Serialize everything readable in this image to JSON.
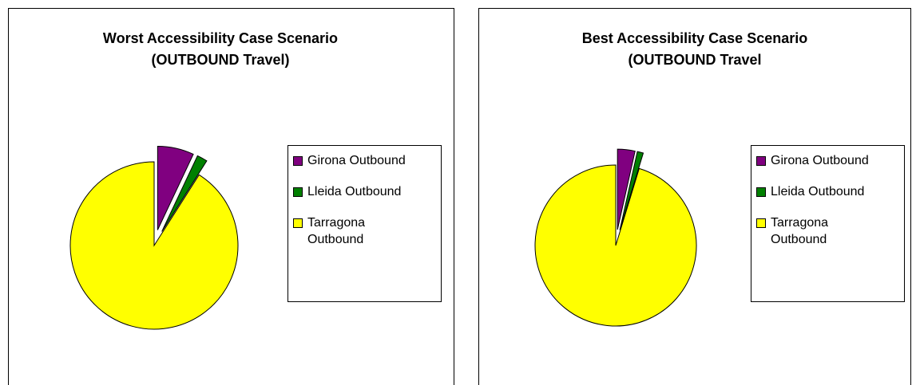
{
  "chart_data": [
    {
      "type": "pie",
      "title": [
        "Worst Accessibility Case Scenario",
        "(OUTBOUND Travel)"
      ],
      "categories": [
        "Girona Outbound",
        "Lleida Outbound",
        "Tarragona Outbound"
      ],
      "values": [
        7,
        2,
        91
      ],
      "colors": [
        "#800080",
        "#008000",
        "#ffff00"
      ],
      "exploded": [
        true,
        true,
        false
      ]
    },
    {
      "type": "pie",
      "title": [
        "Best Accessibility Case Scenario",
        "(OUTBOUND Travel"
      ],
      "categories": [
        "Girona Outbound",
        "Lleida Outbound",
        "Tarragona Outbound"
      ],
      "values": [
        3.5,
        1.2,
        95.3
      ],
      "colors": [
        "#800080",
        "#008000",
        "#ffff00"
      ],
      "exploded": [
        true,
        true,
        false
      ]
    }
  ]
}
